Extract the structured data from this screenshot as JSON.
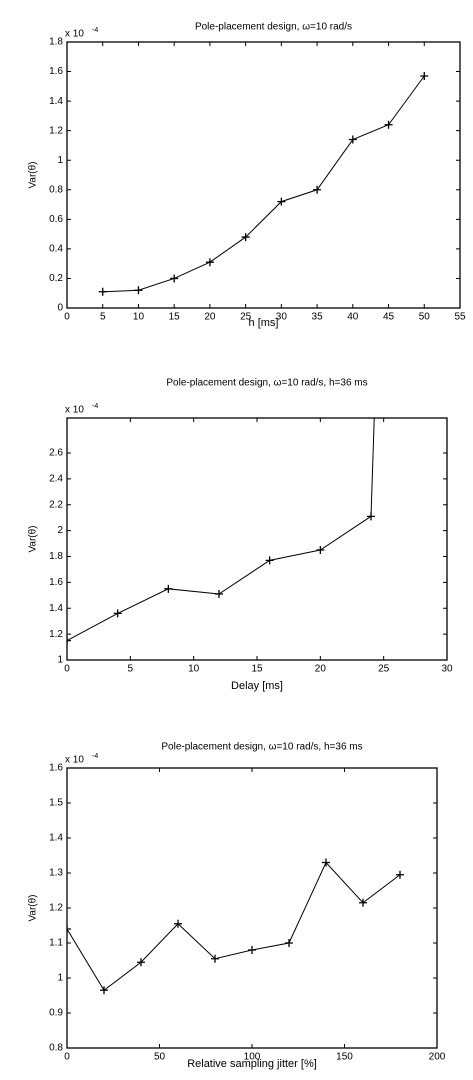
{
  "chart_data": [
    {
      "type": "line",
      "title": "Pole-placement design, ω=10 rad/s",
      "xlabel": "h [ms]",
      "ylabel": "Var(θ)",
      "y_multiplier": "x 10",
      "y_exponent": "-4",
      "x": [
        5,
        10,
        15,
        20,
        25,
        30,
        35,
        40,
        45,
        50
      ],
      "series": [
        {
          "color": "#000000",
          "values": [
            0.11,
            0.12,
            0.2,
            0.31,
            0.48,
            0.72,
            0.8,
            1.14,
            1.24,
            1.57
          ]
        }
      ],
      "xlim": [
        0,
        55
      ],
      "xticks": [
        0,
        5,
        10,
        15,
        20,
        25,
        30,
        35,
        40,
        45,
        50,
        55
      ],
      "ylim": [
        0,
        1.8
      ],
      "yticks": [
        0,
        0.2,
        0.4,
        0.6,
        0.8,
        1,
        1.2,
        1.4,
        1.6,
        1.8
      ]
    },
    {
      "type": "line",
      "title": "Pole-placement design, ω=10 rad/s, h=36 ms",
      "xlabel": "Delay [ms]",
      "ylabel": "Var(θ)",
      "y_multiplier": "x 10",
      "y_exponent": "-4",
      "x": [
        0,
        4,
        8,
        12,
        16,
        20,
        24,
        24.3
      ],
      "series": [
        {
          "color": "#000000",
          "values": [
            1.15,
            1.36,
            1.55,
            1.51,
            1.77,
            1.85,
            2.11,
            3.0
          ]
        }
      ],
      "xlim": [
        0,
        30
      ],
      "xticks": [
        0,
        5,
        10,
        15,
        20,
        25,
        30
      ],
      "ylim": [
        1,
        2.87
      ],
      "yticks": [
        1,
        1.2,
        1.4,
        1.6,
        1.8,
        2,
        2.2,
        2.4,
        2.6
      ]
    },
    {
      "type": "line",
      "title": "Pole-placement design, ω=10 rad/s, h=36 ms",
      "xlabel": "Relative sampling jitter [%]",
      "ylabel": "Var(θ)",
      "y_multiplier": "x 10",
      "y_exponent": "-4",
      "x": [
        0,
        20,
        40,
        60,
        80,
        100,
        120,
        140,
        160,
        180
      ],
      "series": [
        {
          "color": "#000000",
          "values": [
            1.14,
            0.965,
            1.045,
            1.155,
            1.055,
            1.08,
            1.1,
            1.33,
            1.215,
            1.295
          ]
        }
      ],
      "xlim": [
        0,
        200
      ],
      "xticks": [
        0,
        50,
        100,
        150,
        200
      ],
      "ylim": [
        0.8,
        1.6
      ],
      "yticks": [
        0.8,
        0.9,
        1,
        1.1,
        1.2,
        1.3,
        1.4,
        1.5,
        1.6
      ]
    }
  ]
}
